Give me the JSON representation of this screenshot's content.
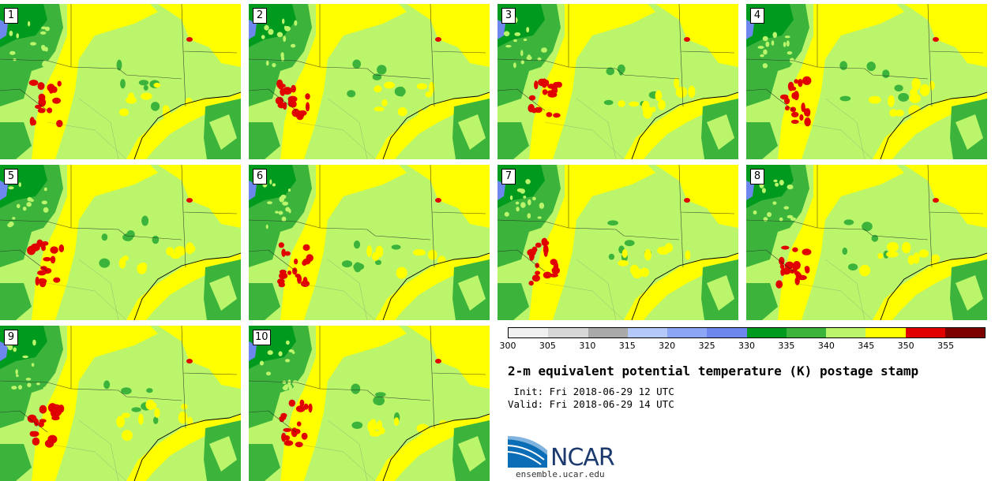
{
  "panels": [
    {
      "label": "1"
    },
    {
      "label": "2"
    },
    {
      "label": "3"
    },
    {
      "label": "4"
    },
    {
      "label": "5"
    },
    {
      "label": "6"
    },
    {
      "label": "7"
    },
    {
      "label": "8"
    },
    {
      "label": "9"
    },
    {
      "label": "10"
    }
  ],
  "colorbar": {
    "colors": [
      "#f0f0f0",
      "#d7d7d7",
      "#a9a9a9",
      "#b4c8fa",
      "#8ca5f5",
      "#6e87ee",
      "#009a1e",
      "#3cb43c",
      "#baf56c",
      "#ffff00",
      "#e10000",
      "#7d0000"
    ],
    "ticks": [
      "300",
      "305",
      "310",
      "315",
      "320",
      "325",
      "330",
      "335",
      "340",
      "345",
      "350",
      "355"
    ]
  },
  "legend_colors": {
    "ocean_lake": "#6e87ee",
    "dark_green": "#009a1e",
    "green": "#3cb43c",
    "light_green": "#baf56c",
    "yellow": "#ffff00",
    "red": "#e10000"
  },
  "title": "2-m equivalent potential temperature (K) postage stamp",
  "init": " Init: Fri 2018-06-29 12 UTC",
  "valid": "Valid: Fri 2018-06-29 14 UTC",
  "logo_text": "NCAR",
  "url": "ensemble.ucar.edu"
}
